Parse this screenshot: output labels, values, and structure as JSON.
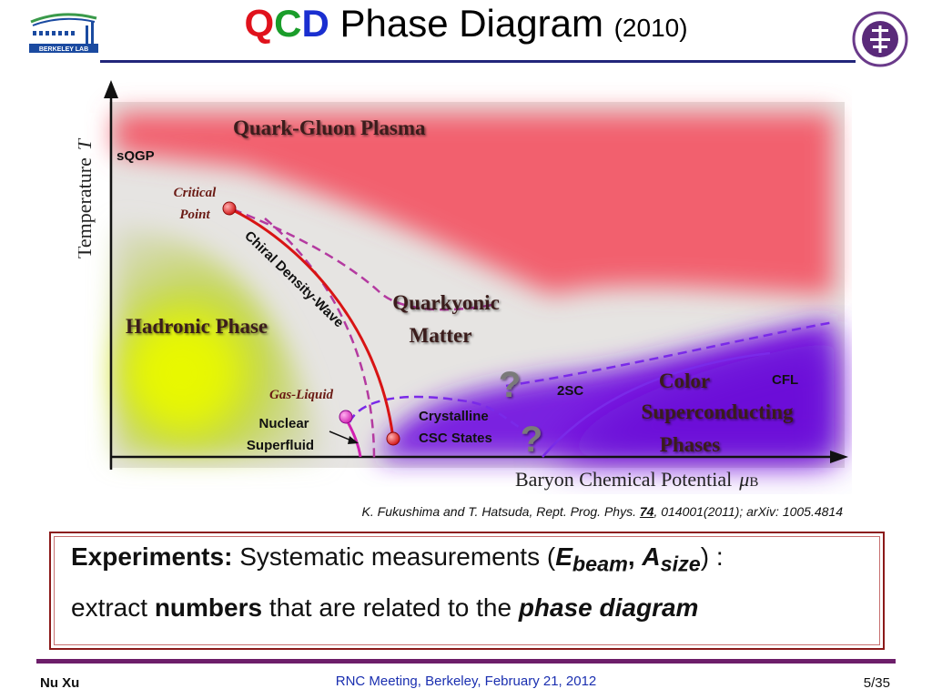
{
  "title": {
    "q": "Q",
    "c": "C",
    "d": "D",
    "main": "Phase Diagram",
    "year": "(2010)"
  },
  "logos": {
    "left": "Berkeley Lab logo",
    "left_text": "BERKELEY LAB",
    "right": "Tsinghua University seal"
  },
  "diagram": {
    "y_axis_label": "Temperature",
    "y_axis_symbol": "T",
    "x_axis_label": "Baryon Chemical Potential",
    "x_axis_symbol": "μ",
    "x_axis_subscript": "B",
    "qgp": "Quark-Gluon Plasma",
    "sqgp": "sQGP",
    "critical_point_1": "Critical",
    "critical_point_2": "Point",
    "chiral": "Chiral Density-Wave",
    "quarkyonic_1": "Quarkyonic",
    "quarkyonic_2": "Matter",
    "hadronic": "Hadronic Phase",
    "gas_liquid": "Gas-Liquid",
    "nuclear_1": "Nuclear",
    "nuclear_2": "Superfluid",
    "crystalline_1": "Crystalline",
    "crystalline_2": "CSC States",
    "twosc": "2SC",
    "cfl": "CFL",
    "color_1": "Color",
    "color_2": "Superconducting",
    "color_3": "Phases",
    "question": "?",
    "colors": {
      "qgp": "#f2606e",
      "hadronic": "#d8ec1a",
      "superconducting": "#7a22e0",
      "critical_line": "#d81414",
      "dashed": "#b43aa0",
      "boundary_purple": "#7a2ae8"
    }
  },
  "citation": {
    "pre": "K. Fukushima and T. Hatsuda, Rept. Prog. Phys.",
    "vol": "74",
    "post": ", 014001(2011); arXiv: 1005.4814"
  },
  "experiments": {
    "label": "Experiments:",
    "text1": "Systematic measurements (",
    "e": "E",
    "e_sub": "beam",
    "comma": ",",
    "a": "A",
    "a_sub": "size",
    "text1_end": ") :",
    "text2a": "extract",
    "numbers": "numbers",
    "text2b": "that are related to the",
    "phase_diagram": "phase diagram"
  },
  "footer": {
    "author": "Nu Xu",
    "meeting": "RNC Meeting, Berkeley, February 21, 2012",
    "page": "5/35"
  }
}
